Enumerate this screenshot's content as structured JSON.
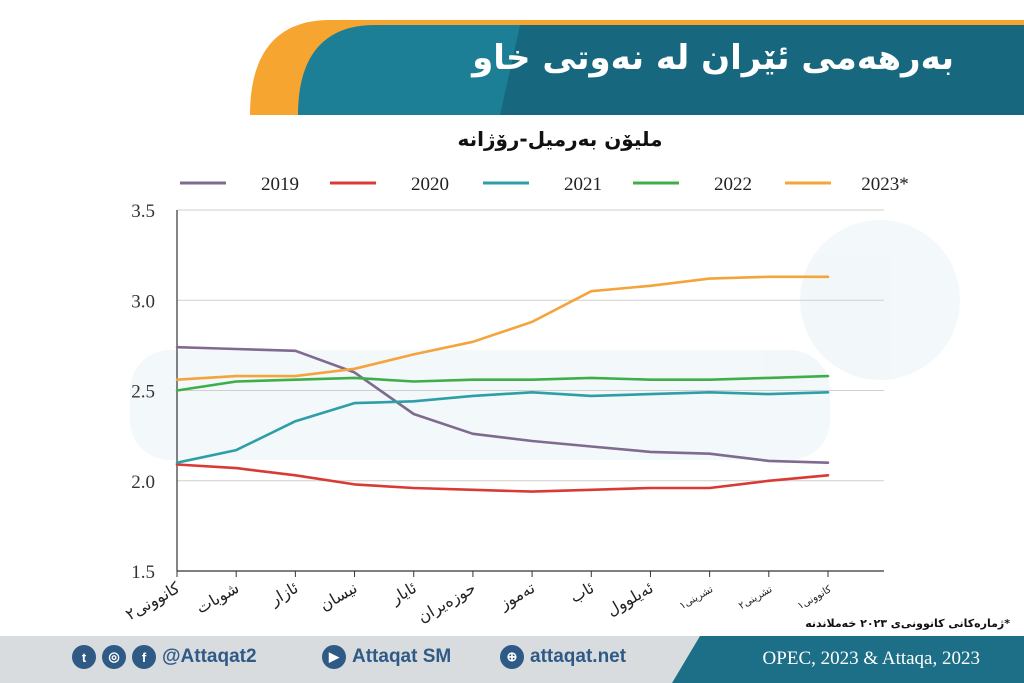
{
  "header": {
    "title": "بەرهەمی ئێران لە نەوتی خاو"
  },
  "chart_data": {
    "type": "line",
    "title": "ملیۆن بەرمیل-رۆژانە",
    "ylim": [
      1.5,
      3.5
    ],
    "yticks": [
      "1.5",
      "2.0",
      "2.5",
      "3.0",
      "3.5"
    ],
    "categories": [
      "كانوونی٢",
      "شوبات",
      "ئازار",
      "نيسان",
      "ئايار",
      "حوزەيران",
      "تەموز",
      "ئاب",
      "ئەيلوول",
      "تشرينی١",
      "تشرينی٢",
      "كانوونی١"
    ],
    "legend_position": "top",
    "grid": true,
    "series": [
      {
        "name": "2019",
        "color": "#7e6b8f",
        "values": [
          2.74,
          2.73,
          2.72,
          2.6,
          2.37,
          2.26,
          2.22,
          2.19,
          2.16,
          2.15,
          2.11,
          2.1
        ]
      },
      {
        "name": "2020",
        "color": "#d93a35",
        "values": [
          2.09,
          2.07,
          2.03,
          1.98,
          1.96,
          1.95,
          1.94,
          1.95,
          1.96,
          1.96,
          2.0,
          2.03
        ]
      },
      {
        "name": "2021",
        "color": "#2e9ea8",
        "values": [
          2.1,
          2.17,
          2.33,
          2.43,
          2.44,
          2.47,
          2.49,
          2.47,
          2.48,
          2.49,
          2.48,
          2.49
        ]
      },
      {
        "name": "2022",
        "color": "#3fae49",
        "values": [
          2.5,
          2.55,
          2.56,
          2.57,
          2.55,
          2.56,
          2.56,
          2.57,
          2.56,
          2.56,
          2.57,
          2.58
        ]
      },
      {
        "name": "2023*",
        "color": "#f4a43a",
        "values": [
          2.56,
          2.58,
          2.58,
          2.62,
          2.7,
          2.77,
          2.88,
          3.05,
          3.08,
          3.12,
          3.13,
          3.13
        ]
      }
    ]
  },
  "footnote": "*ژمارەکانی كانوونی‌ی ٢٠٢٣ خەملاندنە",
  "footer": {
    "handle": "@Attaqat2",
    "youtube": "Attaqat SM",
    "website": "attaqat.net",
    "source": "OPEC, 2023 & Attaqa, 2023"
  }
}
